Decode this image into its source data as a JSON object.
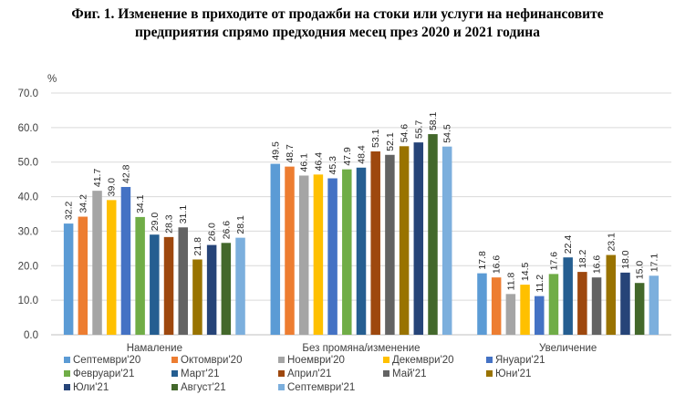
{
  "chart_data": {
    "type": "bar",
    "title_line1": "Фиг. 1. Изменение в приходите от продажби на стоки или услуги на нефинансовите",
    "title_line2": "предприятия спрямо предходния месец през 2020 и 2021 година",
    "ylabel": "%",
    "ylim": [
      0,
      70
    ],
    "yticks": [
      "0.0",
      "10.0",
      "20.0",
      "30.0",
      "40.0",
      "50.0",
      "60.0",
      "70.0"
    ],
    "grid": true,
    "legend_position": "bottom",
    "categories": [
      "Намаление",
      "Без промяна/изменение",
      "Увеличение"
    ],
    "series": [
      {
        "name": "Септември'20",
        "color": "#5B9BD5",
        "values": [
          32.2,
          49.5,
          17.8
        ]
      },
      {
        "name": "Октомври'20",
        "color": "#ED7D31",
        "values": [
          34.2,
          48.7,
          16.6
        ]
      },
      {
        "name": "Ноември'20",
        "color": "#A5A5A5",
        "values": [
          41.7,
          46.1,
          11.8
        ]
      },
      {
        "name": "Декември'20",
        "color": "#FFC000",
        "values": [
          39.0,
          46.4,
          14.5
        ]
      },
      {
        "name": "Януари'21",
        "color": "#4472C4",
        "values": [
          42.8,
          45.3,
          11.2
        ]
      },
      {
        "name": "Февруари'21",
        "color": "#70AD47",
        "values": [
          34.1,
          47.9,
          17.6
        ]
      },
      {
        "name": "Март'21",
        "color": "#255E91",
        "values": [
          29.0,
          48.4,
          22.4
        ]
      },
      {
        "name": "Април'21",
        "color": "#9E480E",
        "values": [
          28.3,
          53.1,
          18.2
        ]
      },
      {
        "name": "Май'21",
        "color": "#636363",
        "values": [
          31.1,
          52.1,
          16.6
        ]
      },
      {
        "name": "Юни'21",
        "color": "#997300",
        "values": [
          21.8,
          54.6,
          23.1
        ]
      },
      {
        "name": "Юли'21",
        "color": "#264478",
        "values": [
          26.0,
          55.7,
          18.0
        ]
      },
      {
        "name": "Август'21",
        "color": "#43682B",
        "values": [
          26.6,
          58.1,
          15.0
        ]
      },
      {
        "name": "Септември'21",
        "color": "#7CAFDD",
        "values": [
          28.1,
          54.5,
          17.1
        ]
      }
    ]
  }
}
